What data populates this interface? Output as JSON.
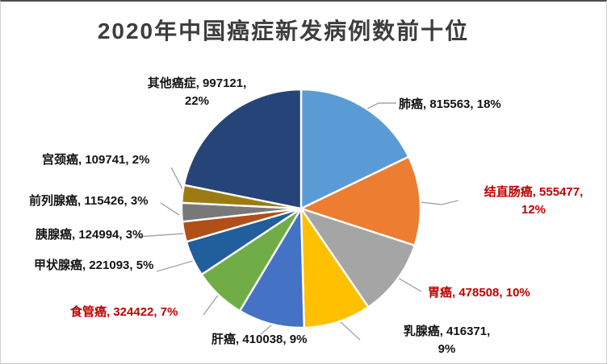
{
  "chart_data": {
    "type": "pie",
    "title": "2020年中国癌症新发病例数前十位",
    "start_angle_deg": 0,
    "direction": "clockwise",
    "legend": "none",
    "label_style": "outside-with-leader-lines, format: name, value, percent",
    "slices": [
      {
        "name": "肺癌",
        "value": 815563,
        "percent": "18%",
        "color": "#5B9BD5",
        "label": "肺癌, 815563, 18%",
        "label_color": "#141414"
      },
      {
        "name": "结直肠癌",
        "value": 555477,
        "percent": "12%",
        "color": "#ED7D31",
        "label": "结直肠癌, 555477, 12%",
        "label_color": "#C00000"
      },
      {
        "name": "胃癌",
        "value": 478508,
        "percent": "10%",
        "color": "#A5A5A5",
        "label": "胃癌, 478508, 10%",
        "label_color": "#C00000"
      },
      {
        "name": "乳腺癌",
        "value": 416371,
        "percent": "9%",
        "color": "#FFC000",
        "label": "乳腺癌, 416371, 9%",
        "label_color": "#141414"
      },
      {
        "name": "肝癌",
        "value": 410038,
        "percent": "9%",
        "color": "#4472C4",
        "label": "肝癌, 410038, 9%",
        "label_color": "#141414"
      },
      {
        "name": "食管癌",
        "value": 324422,
        "percent": "7%",
        "color": "#70AD47",
        "label": "食管癌, 324422, 7%",
        "label_color": "#C00000"
      },
      {
        "name": "甲状腺癌",
        "value": 221093,
        "percent": "5%",
        "color": "#215E9C",
        "label": "甲状腺癌, 221093, 5%",
        "label_color": "#141414"
      },
      {
        "name": "胰腺癌",
        "value": 124994,
        "percent": "3%",
        "color": "#B04F17",
        "label": "胰腺癌, 124994, 3%",
        "label_color": "#141414"
      },
      {
        "name": "前列腺癌",
        "value": 115426,
        "percent": "3%",
        "color": "#787878",
        "label": "前列腺癌, 115426, 3%",
        "label_color": "#141414"
      },
      {
        "name": "宫颈癌",
        "value": 109741,
        "percent": "2%",
        "color": "#9C7C12",
        "label": "宫颈癌, 109741, 2%",
        "label_color": "#141414"
      },
      {
        "name": "其他癌症",
        "value": 997121,
        "percent": "22%",
        "color": "#264478",
        "label": "其他癌症, 997121, 22%",
        "label_color": "#141414"
      }
    ],
    "colors": {
      "title": "#3D3D3D",
      "label_default": "#141414",
      "label_emphasis": "#C00000",
      "leader_line": "#A6A6A6",
      "slice_border": "#FFFFFF",
      "background": "#FFFFFF"
    }
  }
}
